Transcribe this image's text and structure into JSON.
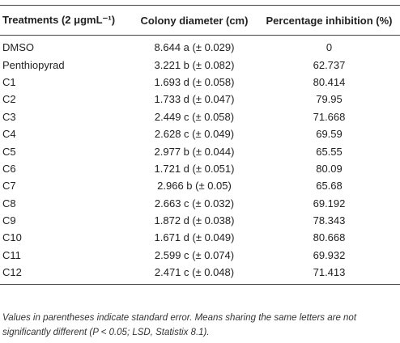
{
  "table": {
    "headers": [
      "Treatments (2 μgmL⁻¹)",
      "Colony diameter (cm)",
      "Percentage inhibition (%)"
    ],
    "rows": [
      [
        "DMSO",
        "8.644 a (± 0.029)",
        "0"
      ],
      [
        "Penthiopyrad",
        "3.221 b (± 0.082)",
        "62.737"
      ],
      [
        "C1",
        "1.693 d (± 0.058)",
        "80.414"
      ],
      [
        "C2",
        "1.733 d (± 0.047)",
        "79.95"
      ],
      [
        "C3",
        "2.449 c (± 0.058)",
        "71.668"
      ],
      [
        "C4",
        "2.628 c (± 0.049)",
        "69.59"
      ],
      [
        "C5",
        "2.977 b (± 0.044)",
        "65.55"
      ],
      [
        "C6",
        "1.721 d (± 0.051)",
        "80.09"
      ],
      [
        "C7",
        "2.966 b (± 0.05)",
        "65.68"
      ],
      [
        "C8",
        "2.663 c (± 0.032)",
        "69.192"
      ],
      [
        "C9",
        "1.872 d (± 0.038)",
        "78.343"
      ],
      [
        "C10",
        "1.671 d (± 0.049)",
        "80.668"
      ],
      [
        "C11",
        "2.599 c (± 0.074)",
        "69.932"
      ],
      [
        "C12",
        "2.471 c (± 0.048)",
        "71.413"
      ]
    ]
  },
  "footnote": "Values in parentheses indicate standard error. Means sharing the same letters are not significantly different (P < 0.05; LSD, Statistix 8.1)."
}
